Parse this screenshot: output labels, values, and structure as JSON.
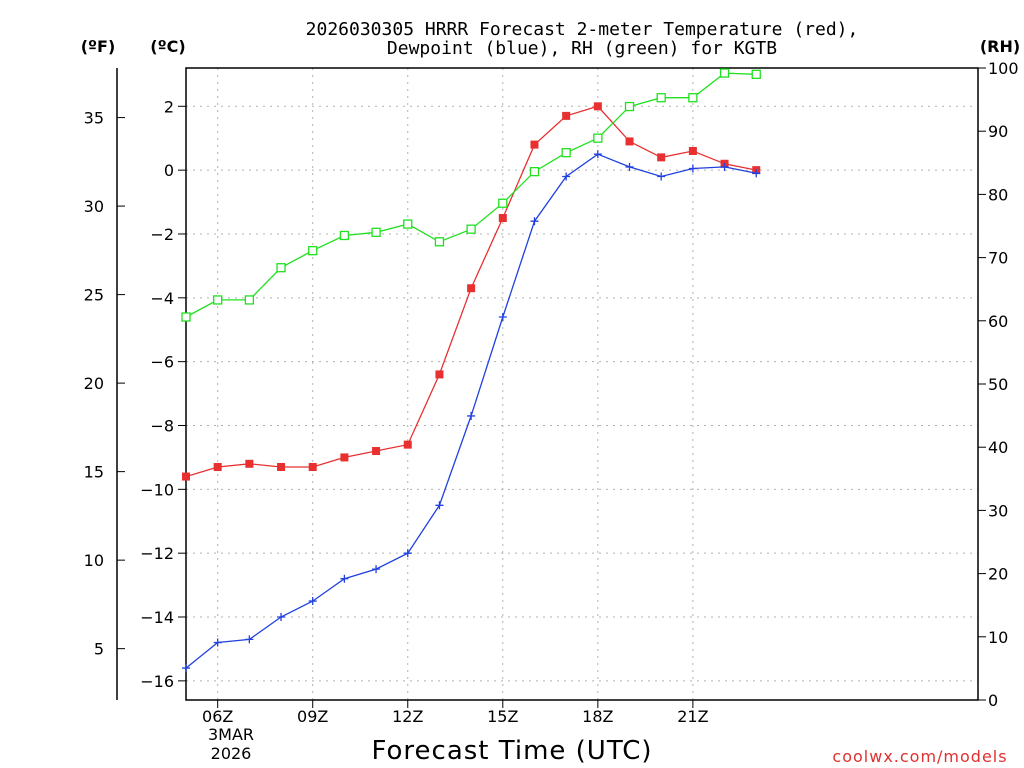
{
  "chart_data": {
    "type": "line",
    "title_line1": "2026030305 HRRR Forecast 2-meter Temperature (red),",
    "title_line2": "Dewpoint (blue), RH (green) for KGTB",
    "xlabel": "Forecast Time (UTC)",
    "credit": "coolwx.com/models",
    "units": {
      "fahrenheit": "(ºF)",
      "celsius": "(ºC)",
      "rh": "(RH)"
    },
    "x_hours": [
      5,
      30
    ],
    "x_ticks": [
      {
        "hour": 6,
        "label": "06Z"
      },
      {
        "hour": 9,
        "label": "09Z"
      },
      {
        "hour": 12,
        "label": "12Z"
      },
      {
        "hour": 15,
        "label": "15Z"
      },
      {
        "hour": 18,
        "label": "18Z"
      },
      {
        "hour": 21,
        "label": "21Z"
      }
    ],
    "date_labels": [
      "3MAR",
      "2026"
    ],
    "celsius_axis": {
      "range": [
        -16.6,
        3.2
      ],
      "ticks": [
        2,
        0,
        -2,
        -4,
        -6,
        -8,
        -10,
        -12,
        -14,
        -16
      ]
    },
    "fahrenheit_axis": {
      "range": [
        2.1,
        37.8
      ],
      "ticks": [
        35,
        30,
        25,
        20,
        15,
        10,
        5
      ]
    },
    "rh_axis": {
      "range": [
        0,
        100
      ],
      "ticks": [
        100,
        90,
        80,
        70,
        60,
        50,
        40,
        30,
        20,
        10,
        0
      ]
    },
    "series": [
      {
        "name": "Temperature",
        "color": "#e83030",
        "marker": "filled-square",
        "hours": [
          5,
          6,
          7,
          8,
          9,
          10,
          11,
          12,
          13,
          14,
          15,
          16,
          17,
          18,
          19,
          20,
          21,
          22,
          23
        ],
        "values": [
          -9.6,
          -9.3,
          -9.2,
          -9.3,
          -9.3,
          -9.0,
          -8.8,
          -8.6,
          -6.4,
          -3.7,
          -1.5,
          0.8,
          1.7,
          2.0,
          0.9,
          0.4,
          0.6,
          0.2,
          0.0
        ]
      },
      {
        "name": "Dewpoint",
        "color": "#2040e0",
        "marker": "plus",
        "hours": [
          5,
          6,
          7,
          8,
          9,
          10,
          11,
          12,
          13,
          14,
          15,
          16,
          17,
          18,
          19,
          20,
          21,
          22,
          23
        ],
        "values": [
          -15.6,
          -14.8,
          -14.7,
          -14.0,
          -13.5,
          -12.8,
          -12.5,
          -12.0,
          -10.5,
          -7.7,
          -4.6,
          -1.6,
          -0.2,
          0.5,
          0.1,
          -0.2,
          0.05,
          0.1,
          -0.1
        ]
      },
      {
        "name": "RH",
        "color": "#20e020",
        "marker": "open-square",
        "axis": "rh",
        "hours": [
          5,
          6,
          7,
          8,
          9,
          10,
          11,
          12,
          13,
          14,
          15,
          16,
          17,
          18,
          19,
          20,
          21,
          22,
          23
        ],
        "values": [
          60.6,
          63.3,
          63.3,
          68.4,
          71.1,
          73.5,
          74.0,
          75.3,
          72.5,
          74.5,
          78.6,
          83.6,
          86.6,
          88.9,
          93.9,
          95.3,
          95.3,
          99.2,
          99.0
        ]
      }
    ]
  }
}
